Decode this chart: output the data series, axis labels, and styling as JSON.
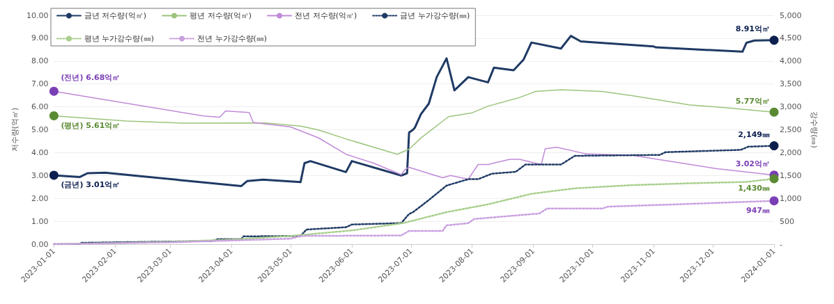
{
  "chart_data": {
    "type": "line",
    "ylabel": "저수량(억㎥)",
    "y2label": "강수량(㎜)",
    "xlim": [
      "2023-01-01",
      "2024-01-01"
    ],
    "xticks": [
      "2023-01-01",
      "2023-02-01",
      "2023-03-01",
      "2023-04-01",
      "2023-05-01",
      "2023-06-01",
      "2023-07-01",
      "2023-08-01",
      "2023-09-01",
      "2023-10-01",
      "2023-11-01",
      "2023-12-01",
      "2024-01-01"
    ],
    "ylim": [
      0,
      10
    ],
    "yticks": [
      {
        "value": 0,
        "label": "0.00"
      },
      {
        "value": 1,
        "label": "1.00"
      },
      {
        "value": 2,
        "label": "2.00"
      },
      {
        "value": 3,
        "label": "3.00"
      },
      {
        "value": 4,
        "label": "4.00"
      },
      {
        "value": 5,
        "label": "5.00"
      },
      {
        "value": 6,
        "label": "6.00"
      },
      {
        "value": 7,
        "label": "7.00"
      },
      {
        "value": 8,
        "label": "8.00"
      },
      {
        "value": 9,
        "label": "9.00"
      },
      {
        "value": 10,
        "label": "10.00"
      }
    ],
    "y2lim": [
      0,
      5000
    ],
    "y2ticks": [
      {
        "value": 0,
        "label": "-"
      },
      500,
      {
        "value": 1000,
        "label": "1,000"
      },
      {
        "value": 1500,
        "label": "1,500"
      },
      {
        "value": 2000,
        "label": "2,000"
      },
      {
        "value": 2500,
        "label": "2,500"
      },
      {
        "value": 3000,
        "label": "3,000"
      },
      {
        "value": 3500,
        "label": "3,500"
      },
      {
        "value": 4000,
        "label": "4,000"
      },
      {
        "value": 4500,
        "label": "4,500"
      },
      {
        "value": 5000,
        "label": "5,000"
      }
    ],
    "grid": "y",
    "legend": "top left",
    "series": [
      {
        "name": "금년 저수량(억㎥)",
        "color": "#1f3a64",
        "line_style": "solid",
        "x": [
          "2023-01-01",
          "2023-01-14",
          "2023-01-18",
          "2023-01-27",
          "2023-04-06",
          "2023-04-09",
          "2023-04-17",
          "2023-05-06",
          "2023-05-08",
          "2023-05-11",
          "2023-05-29",
          "2023-06-01",
          "2023-06-26",
          "2023-06-29",
          "2023-06-30",
          "2023-07-02",
          "2023-07-03",
          "2023-07-06",
          "2023-07-10",
          "2023-07-14",
          "2023-07-19",
          "2023-07-23",
          "2023-07-30",
          "2023-08-09",
          "2023-08-12",
          "2023-08-22",
          "2023-08-27",
          "2023-08-31",
          "2023-09-15",
          "2023-09-20",
          "2023-09-25",
          "2023-10-01",
          "2023-11-01",
          "2023-11-02",
          "2023-12-16",
          "2023-12-18",
          "2023-12-22",
          "2024-01-01"
        ],
        "values": [
          3.01,
          2.93,
          3.1,
          3.12,
          2.54,
          2.76,
          2.82,
          2.71,
          3.54,
          3.63,
          3.15,
          3.63,
          3.0,
          3.1,
          4.88,
          5.0,
          5.1,
          5.68,
          6.14,
          7.3,
          8.12,
          6.72,
          7.3,
          7.07,
          7.71,
          7.6,
          8.06,
          8.81,
          8.55,
          9.1,
          8.86,
          8.82,
          8.64,
          8.6,
          8.41,
          8.8,
          8.9,
          8.91
        ],
        "value_labels": [
          "(금년) 3.01억㎥",
          null,
          null,
          null,
          null,
          null,
          null,
          null,
          null,
          null,
          null,
          null,
          null,
          null,
          null,
          null,
          null,
          null,
          null,
          null,
          null,
          null,
          null,
          null,
          null,
          null,
          null,
          null,
          null,
          null,
          null,
          null,
          null,
          null,
          null,
          null,
          null,
          "8.91억㎥"
        ]
      },
      {
        "name": "평년 저수량(억㎥)",
        "color": "#9cc47c",
        "line_style": "solid",
        "x": [
          "2023-01-01",
          "2023-02-07",
          "2023-03-07",
          "2023-04-18",
          "2023-05-06",
          "2023-05-15",
          "2023-05-29",
          "2023-06-24",
          "2023-06-30",
          "2023-07-06",
          "2023-07-20",
          "2023-08-01",
          "2023-08-09",
          "2023-08-24",
          "2023-09-02",
          "2023-09-15",
          "2023-10-06",
          "2023-10-21",
          "2023-11-19",
          "2023-12-10",
          "2024-01-01"
        ],
        "values": [
          5.61,
          5.38,
          5.29,
          5.3,
          5.16,
          4.99,
          4.6,
          3.93,
          4.15,
          4.64,
          5.57,
          5.74,
          6.03,
          6.38,
          6.67,
          6.75,
          6.67,
          6.49,
          6.09,
          5.94,
          5.77
        ],
        "value_labels": [
          "(평년) 5.61억㎥",
          null,
          null,
          null,
          null,
          null,
          null,
          null,
          null,
          null,
          null,
          null,
          null,
          null,
          null,
          null,
          null,
          null,
          null,
          null,
          "5.77억㎥"
        ]
      },
      {
        "name": "전년 저수량(억㎥)",
        "color": "#c08ad8",
        "line_style": "solid",
        "x": [
          "2023-01-01",
          "2023-03-18",
          "2023-03-26",
          "2023-03-29",
          "2023-04-10",
          "2023-04-12",
          "2023-05-01",
          "2023-05-15",
          "2023-05-29",
          "2023-06-12",
          "2023-06-26",
          "2023-06-28",
          "2023-06-30",
          "2023-07-17",
          "2023-07-21",
          "2023-07-30",
          "2023-08-04",
          "2023-08-09",
          "2023-08-20",
          "2023-08-25",
          "2023-09-05",
          "2023-09-07",
          "2023-09-13",
          "2023-09-28",
          "2023-10-21",
          "2023-12-03",
          "2024-01-01"
        ],
        "values": [
          6.68,
          5.6,
          5.55,
          5.82,
          5.75,
          5.32,
          5.12,
          4.65,
          3.93,
          3.54,
          3.04,
          3.26,
          3.36,
          2.9,
          3.0,
          2.84,
          3.48,
          3.48,
          3.71,
          3.71,
          3.48,
          4.17,
          4.23,
          3.94,
          3.88,
          3.3,
          3.02
        ],
        "value_labels": [
          "(전년) 6.68억㎥",
          null,
          null,
          null,
          null,
          null,
          null,
          null,
          null,
          null,
          null,
          null,
          null,
          null,
          null,
          null,
          null,
          null,
          null,
          null,
          null,
          null,
          null,
          null,
          null,
          null,
          "3.02억㎥"
        ]
      },
      {
        "name": "금년 누가강수량(㎜)",
        "color": "#1f3a64",
        "line_style": "dotted",
        "axis": "y2",
        "x": [
          "2023-01-01",
          "2023-01-14",
          "2023-01-15",
          "2023-03-22",
          "2023-03-25",
          "2023-04-06",
          "2023-04-07",
          "2023-05-06",
          "2023-05-09",
          "2023-05-29",
          "2023-06-01",
          "2023-06-26",
          "2023-06-30",
          "2023-07-02",
          "2023-07-09",
          "2023-07-19",
          "2023-07-30",
          "2023-08-04",
          "2023-08-11",
          "2023-08-23",
          "2023-08-28",
          "2023-09-15",
          "2023-09-22",
          "2023-11-04",
          "2023-11-07",
          "2023-12-15",
          "2023-12-19",
          "2024-01-01"
        ],
        "values": [
          0,
          0,
          30,
          70,
          110,
          110,
          170,
          180,
          320,
          370,
          430,
          460,
          660,
          700,
          930,
          1280,
          1420,
          1420,
          1540,
          1580,
          1740,
          1740,
          1930,
          1950,
          2010,
          2060,
          2130,
          2149
        ],
        "value_labels": [
          null,
          null,
          null,
          null,
          null,
          null,
          null,
          null,
          null,
          null,
          null,
          null,
          null,
          null,
          null,
          null,
          null,
          null,
          null,
          null,
          null,
          null,
          null,
          null,
          null,
          null,
          null,
          "2,149㎜"
        ]
      },
      {
        "name": "평년 누가강수량(㎜)",
        "color": "#a9cf8c",
        "line_style": "dotted",
        "axis": "y2",
        "x": [
          "2023-01-01",
          "2023-03-01",
          "2023-04-01",
          "2023-05-01",
          "2023-06-01",
          "2023-06-27",
          "2023-07-19",
          "2023-08-09",
          "2023-08-31",
          "2023-09-22",
          "2023-10-21",
          "2023-11-19",
          "2023-12-18",
          "2024-01-01"
        ],
        "values": [
          0,
          50,
          100,
          180,
          300,
          460,
          700,
          870,
          1100,
          1220,
          1290,
          1330,
          1360,
          1430
        ],
        "value_labels": [
          null,
          null,
          null,
          null,
          null,
          null,
          null,
          null,
          null,
          null,
          null,
          null,
          null,
          "1,430㎜"
        ]
      },
      {
        "name": "전년 누가강수량(㎜)",
        "color": "#c9a0e0",
        "line_style": "dotted",
        "axis": "y2",
        "x": [
          "2023-01-01",
          "2023-03-01",
          "2023-05-01",
          "2023-05-06",
          "2023-06-26",
          "2023-06-30",
          "2023-07-17",
          "2023-07-19",
          "2023-07-30",
          "2023-08-02",
          "2023-09-04",
          "2023-09-08",
          "2023-10-06",
          "2023-10-09",
          "2023-11-19",
          "2024-01-01"
        ],
        "values": [
          0,
          40,
          120,
          180,
          190,
          290,
          290,
          410,
          460,
          550,
          670,
          780,
          780,
          820,
          880,
          947
        ],
        "value_labels": [
          null,
          null,
          null,
          null,
          null,
          null,
          null,
          null,
          null,
          null,
          null,
          null,
          null,
          null,
          null,
          "947㎜"
        ]
      }
    ]
  }
}
